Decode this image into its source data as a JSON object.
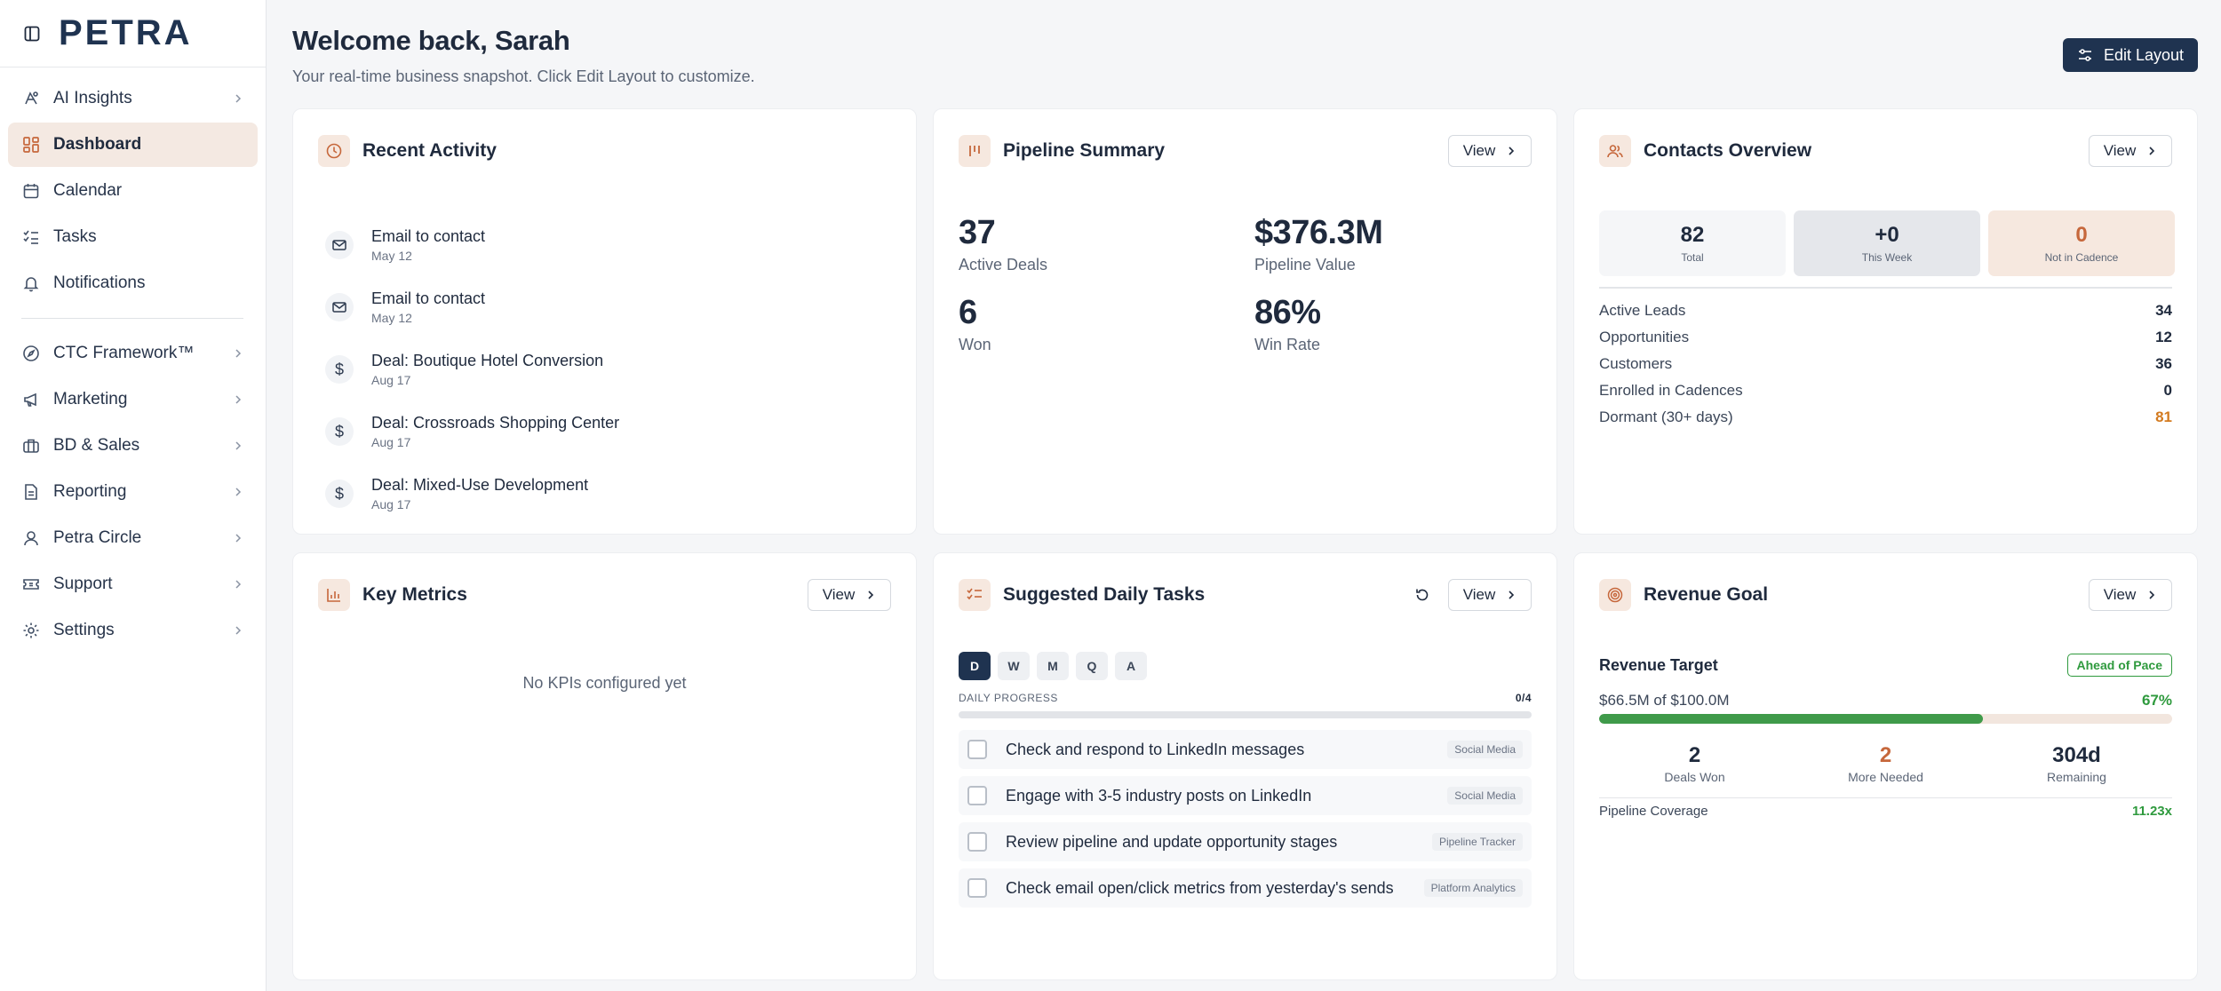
{
  "app": {
    "logo": "PETRA"
  },
  "sidebar": {
    "items": [
      {
        "label": "AI Insights",
        "icon": "ai-brain-icon",
        "chevron": true
      },
      {
        "label": "Dashboard",
        "icon": "dashboard-grid-icon",
        "active": true
      },
      {
        "label": "Calendar",
        "icon": "calendar-icon"
      },
      {
        "label": "Tasks",
        "icon": "checklist-icon"
      },
      {
        "label": "Notifications",
        "icon": "bell-icon"
      },
      {
        "label": "CTC Framework™",
        "icon": "compass-icon",
        "chevron": true
      },
      {
        "label": "Marketing",
        "icon": "megaphone-icon",
        "chevron": true
      },
      {
        "label": "BD & Sales",
        "icon": "briefcase-icon",
        "chevron": true
      },
      {
        "label": "Reporting",
        "icon": "report-icon",
        "chevron": true
      },
      {
        "label": "Petra Circle",
        "icon": "user-icon",
        "chevron": true
      },
      {
        "label": "Support",
        "icon": "ticket-icon",
        "chevron": true
      },
      {
        "label": "Settings",
        "icon": "gear-icon",
        "chevron": true
      }
    ]
  },
  "header": {
    "title": "Welcome back, Sarah",
    "subtitle": "Your real-time business snapshot. Click Edit Layout to customize.",
    "edit_label": "Edit Layout"
  },
  "common": {
    "view_label": "View"
  },
  "recent_activity": {
    "title": "Recent Activity",
    "items": [
      {
        "title": "Email to contact",
        "date": "May 12",
        "icon": "mail-icon"
      },
      {
        "title": "Email to contact",
        "date": "May 12",
        "icon": "mail-icon"
      },
      {
        "title": "Deal: Boutique Hotel Conversion",
        "date": "Aug 17",
        "icon": "dollar-icon"
      },
      {
        "title": "Deal: Crossroads Shopping Center",
        "date": "Aug 17",
        "icon": "dollar-icon"
      },
      {
        "title": "Deal: Mixed-Use Development",
        "date": "Aug 17",
        "icon": "dollar-icon"
      }
    ]
  },
  "pipeline": {
    "title": "Pipeline Summary",
    "stats": [
      {
        "value": "37",
        "label": "Active Deals"
      },
      {
        "value": "$376.3M",
        "label": "Pipeline Value"
      },
      {
        "value": "6",
        "label": "Won"
      },
      {
        "value": "86%",
        "label": "Win Rate"
      }
    ]
  },
  "contacts": {
    "title": "Contacts Overview",
    "tiles": [
      {
        "value": "82",
        "label": "Total"
      },
      {
        "value": "+0",
        "label": "This Week"
      },
      {
        "value": "0",
        "label": "Not in Cadence"
      }
    ],
    "rows": [
      {
        "label": "Active Leads",
        "value": "34"
      },
      {
        "label": "Opportunities",
        "value": "12"
      },
      {
        "label": "Customers",
        "value": "36"
      },
      {
        "label": "Enrolled in Cadences",
        "value": "0"
      },
      {
        "label": "Dormant (30+ days)",
        "value": "81"
      }
    ]
  },
  "key_metrics": {
    "title": "Key Metrics",
    "empty": "No KPIs configured yet"
  },
  "tasks": {
    "title": "Suggested Daily Tasks",
    "periods": [
      "D",
      "W",
      "M",
      "Q",
      "A"
    ],
    "selected_period": "D",
    "progress_label": "DAILY PROGRESS",
    "progress_count": "0/4",
    "progress_fraction": 0,
    "items": [
      {
        "text": "Check and respond to LinkedIn messages",
        "tag": "Social Media"
      },
      {
        "text": "Engage with 3-5 industry posts on LinkedIn",
        "tag": "Social Media"
      },
      {
        "text": "Review pipeline and update opportunity stages",
        "tag": "Pipeline Tracker"
      },
      {
        "text": "Check email open/click metrics from yesterday's sends",
        "tag": "Platform Analytics"
      }
    ]
  },
  "revenue": {
    "title": "Revenue Goal",
    "target_label": "Revenue Target",
    "badge": "Ahead of Pace",
    "progress_text": "$66.5M of $100.0M",
    "percent": "67%",
    "progress_fraction": 0.67,
    "stats": [
      {
        "value": "2",
        "label": "Deals Won"
      },
      {
        "value": "2",
        "label": "More Needed"
      },
      {
        "value": "304d",
        "label": "Remaining"
      }
    ],
    "coverage_label": "Pipeline Coverage",
    "coverage_value": "11.23x"
  },
  "colors": {
    "brand_navy": "#1f3350",
    "accent_orange": "#c6673b",
    "success_green": "#2f9a3e"
  }
}
